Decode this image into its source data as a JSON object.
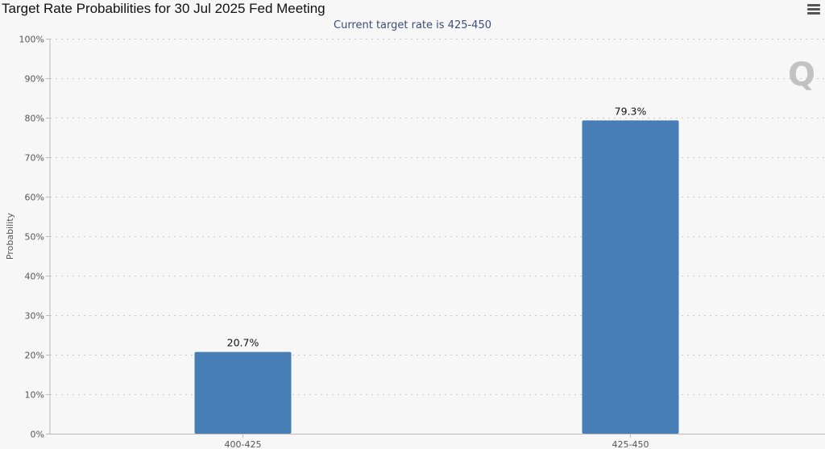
{
  "chart_data": {
    "type": "bar",
    "title": "Target Rate Probabilities for 30 Jul 2025 Fed Meeting",
    "subtitle": "Current target rate is 425-450",
    "categories": [
      "400-425",
      "425-450"
    ],
    "values": [
      20.7,
      79.3
    ],
    "data_labels": [
      "20.7%",
      "79.3%"
    ],
    "xlabel": "",
    "ylabel": "Probability",
    "ylim": [
      0,
      100
    ],
    "yticks": [
      0,
      10,
      20,
      30,
      40,
      50,
      60,
      70,
      80,
      90,
      100
    ],
    "ytick_labels": [
      "0%",
      "10%",
      "20%",
      "30%",
      "40%",
      "50%",
      "60%",
      "70%",
      "80%",
      "90%",
      "100%"
    ],
    "grid": true,
    "bar_color": "#467eb5"
  },
  "logo_text": "Q",
  "icons": {
    "menu": "hamburger-menu-icon"
  }
}
